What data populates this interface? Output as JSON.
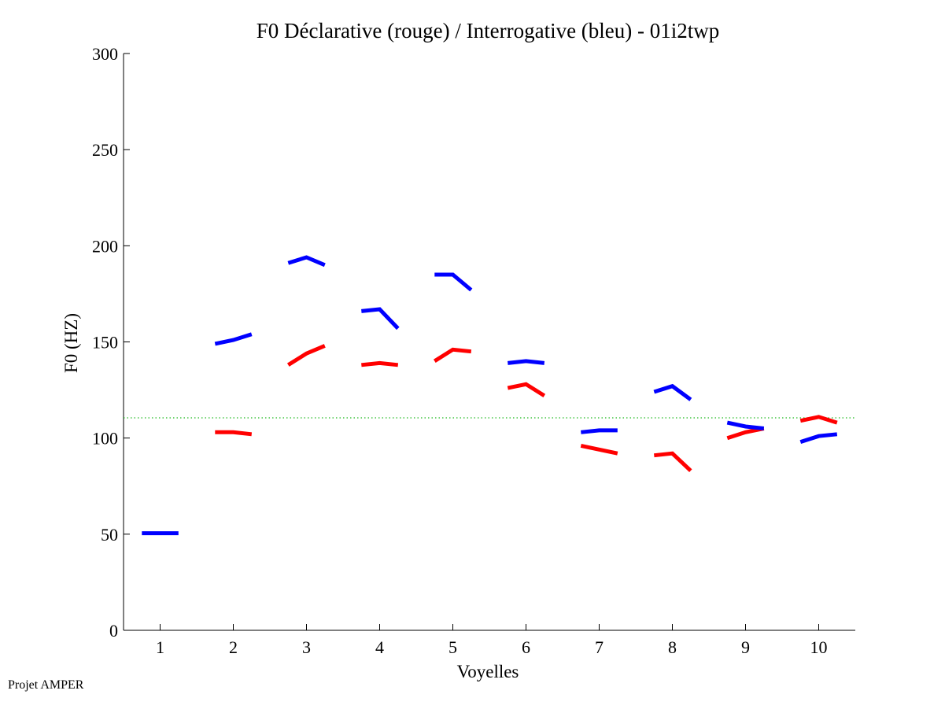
{
  "chart_data": {
    "type": "line",
    "title": "F0 Déclarative (rouge) / Interrogative (bleu) - 01i2twp",
    "xlabel": "Voyelles",
    "ylabel": "F0 (HZ)",
    "ylim": [
      0,
      300
    ],
    "xlim": [
      0.5,
      10.5
    ],
    "yticks": [
      0,
      50,
      100,
      150,
      200,
      250,
      300
    ],
    "xticks": [
      1,
      2,
      3,
      4,
      5,
      6,
      7,
      8,
      9,
      10
    ],
    "reference_line": {
      "y": 110.5,
      "color": "#22bb22",
      "style": "dotted"
    },
    "grid": false,
    "series": [
      {
        "color": "#ff0000",
        "segments": [
          {
            "vowel": 2,
            "x": [
              1.75,
              2.0,
              2.25
            ],
            "y": [
              103,
              103,
              102
            ]
          },
          {
            "vowel": 3,
            "x": [
              2.75,
              3.0,
              3.25
            ],
            "y": [
              138,
              144,
              148
            ]
          },
          {
            "vowel": 4,
            "x": [
              3.75,
              4.0,
              4.25
            ],
            "y": [
              138,
              139,
              138
            ]
          },
          {
            "vowel": 5,
            "x": [
              4.75,
              5.0,
              5.25
            ],
            "y": [
              140,
              146,
              145
            ]
          },
          {
            "vowel": 6,
            "x": [
              5.75,
              6.0,
              6.25
            ],
            "y": [
              126,
              128,
              122
            ]
          },
          {
            "vowel": 7,
            "x": [
              6.75,
              7.0,
              7.25
            ],
            "y": [
              96,
              94,
              92
            ]
          },
          {
            "vowel": 8,
            "x": [
              7.75,
              8.0,
              8.25
            ],
            "y": [
              91,
              92,
              83
            ]
          },
          {
            "vowel": 9,
            "x": [
              8.75,
              9.0,
              9.25
            ],
            "y": [
              100,
              103,
              105
            ]
          },
          {
            "vowel": 10,
            "x": [
              9.75,
              10.0,
              10.25
            ],
            "y": [
              109,
              111,
              108
            ]
          }
        ]
      },
      {
        "color": "#0000ff",
        "segments": [
          {
            "vowel": 1,
            "x": [
              0.75,
              1.0,
              1.25
            ],
            "y": [
              50.5,
              50.5,
              50.5
            ]
          },
          {
            "vowel": 2,
            "x": [
              1.75,
              2.0,
              2.25
            ],
            "y": [
              149,
              151,
              154
            ]
          },
          {
            "vowel": 3,
            "x": [
              2.75,
              3.0,
              3.25
            ],
            "y": [
              191,
              194,
              190
            ]
          },
          {
            "vowel": 4,
            "x": [
              3.75,
              4.0,
              4.25
            ],
            "y": [
              166,
              167,
              157
            ]
          },
          {
            "vowel": 5,
            "x": [
              4.75,
              5.0,
              5.25
            ],
            "y": [
              185,
              185,
              177
            ]
          },
          {
            "vowel": 6,
            "x": [
              5.75,
              6.0,
              6.25
            ],
            "y": [
              139,
              140,
              139
            ]
          },
          {
            "vowel": 7,
            "x": [
              6.75,
              7.0,
              7.25
            ],
            "y": [
              103,
              104,
              104
            ]
          },
          {
            "vowel": 8,
            "x": [
              7.75,
              8.0,
              8.25
            ],
            "y": [
              124,
              127,
              120
            ]
          },
          {
            "vowel": 9,
            "x": [
              8.75,
              9.0,
              9.25
            ],
            "y": [
              108,
              106,
              105
            ]
          },
          {
            "vowel": 10,
            "x": [
              9.75,
              10.0,
              10.25
            ],
            "y": [
              98,
              101,
              102
            ]
          }
        ]
      }
    ]
  },
  "footer": {
    "text": "Projet AMPER"
  }
}
